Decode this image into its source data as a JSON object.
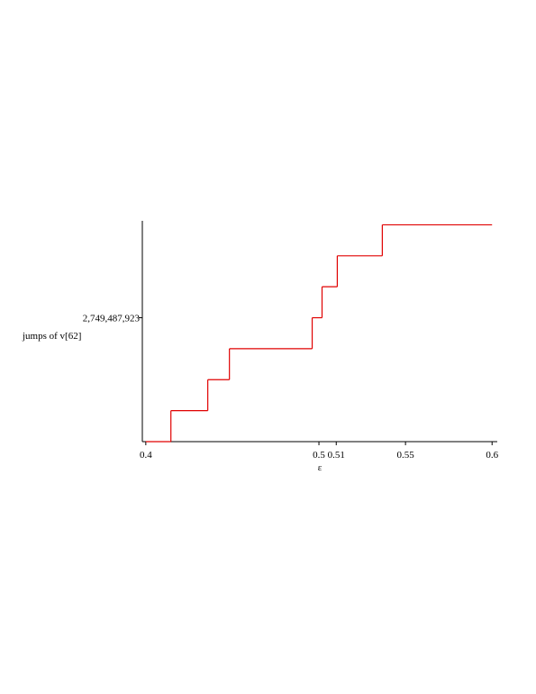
{
  "chart_data": {
    "type": "step",
    "xlabel": "ε",
    "ylabel": "jumps of v[62]",
    "x": [
      0.4,
      0.4145,
      0.4358,
      0.4483,
      0.4961,
      0.5018,
      0.5106,
      0.5366,
      0.6
    ],
    "series": [
      {
        "name": "jumps of v[62]",
        "color": "#e00000",
        "values": [
          0,
          687371981,
          1374743962,
          2062115942,
          2749487923,
          3436859904,
          4124231885,
          4811603865,
          4811603865
        ]
      }
    ],
    "xlim": [
      0.398,
      0.603
    ],
    "ylim": [
      0,
      4900000000
    ],
    "xticks": [
      0.4,
      0.5,
      0.51,
      0.55,
      0.6
    ],
    "yticks": [
      {
        "value": 2749487923,
        "label": "2,749,487,923"
      }
    ],
    "grid": false
  }
}
